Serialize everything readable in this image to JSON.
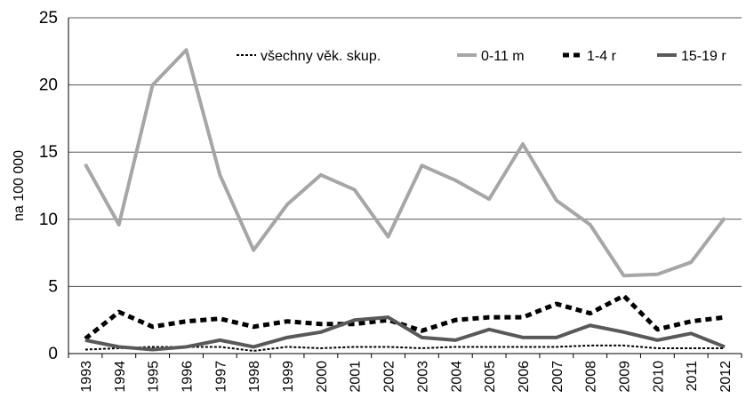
{
  "chart_data": {
    "type": "line",
    "y_label": "na 100 000",
    "categories": [
      "1993",
      "1994",
      "1995",
      "1996",
      "1997",
      "1998",
      "1999",
      "2000",
      "2001",
      "2002",
      "2003",
      "2004",
      "2005",
      "2006",
      "2007",
      "2008",
      "2009",
      "2010",
      "2011",
      "2012"
    ],
    "series": [
      {
        "name": "všechny věk. skup.",
        "color": "#000000",
        "style": "dotted",
        "values": [
          0.3,
          0.4,
          0.5,
          0.5,
          0.5,
          0.2,
          0.5,
          0.4,
          0.5,
          0.5,
          0.4,
          0.5,
          0.5,
          0.5,
          0.5,
          0.6,
          0.6,
          0.4,
          0.4,
          0.4
        ]
      },
      {
        "name": "0-11 m",
        "color": "#a6a6a6",
        "style": "solid",
        "values": [
          14.1,
          9.6,
          20.0,
          22.6,
          13.3,
          7.7,
          11.1,
          13.3,
          12.2,
          8.7,
          14.0,
          12.9,
          11.5,
          15.6,
          11.4,
          9.6,
          5.8,
          5.9,
          6.8,
          10.1
        ]
      },
      {
        "name": "1-4 r",
        "color": "#000000",
        "style": "dashed",
        "values": [
          1.1,
          3.1,
          2.0,
          2.4,
          2.6,
          2.0,
          2.4,
          2.2,
          2.2,
          2.5,
          1.7,
          2.5,
          2.7,
          2.7,
          3.7,
          3.0,
          4.3,
          1.8,
          2.4,
          2.7
        ]
      },
      {
        "name": "15-19 r",
        "color": "#595959",
        "style": "solid",
        "values": [
          1.0,
          0.5,
          0.3,
          0.5,
          1.0,
          0.5,
          1.2,
          1.6,
          2.5,
          2.7,
          1.2,
          1.0,
          1.8,
          1.2,
          1.2,
          2.1,
          1.6,
          1.0,
          1.5,
          0.5
        ]
      }
    ],
    "ylim": [
      0,
      25
    ],
    "yticks": [
      0,
      5,
      10,
      15,
      20,
      25
    ],
    "grid": true,
    "legend": "top"
  }
}
